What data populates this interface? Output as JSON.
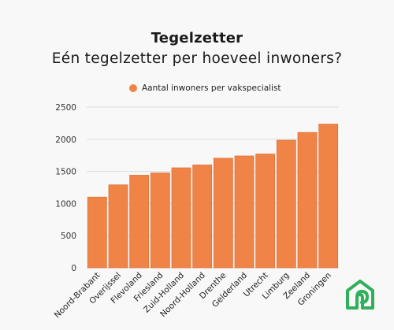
{
  "header": {
    "title": "Tegelzetter",
    "subtitle": "Eén tegelzetter per hoeveel inwoners?"
  },
  "colors": {
    "bar": "#f08447",
    "bar_stroke": "#e0703a",
    "grid": "#dcdcdc",
    "logo": "#2fb05a"
  },
  "logo": {
    "icon": "house-logo-icon"
  },
  "chart_data": {
    "type": "bar",
    "categories": [
      "Noord-Brabant",
      "Overijssel",
      "Flevoland",
      "Friesland",
      "Zuid-Holland",
      "Noord-Holland",
      "Drenthe",
      "Gelderland",
      "Utrecht",
      "Limburg",
      "Zeeland",
      "Groningen"
    ],
    "series": [
      {
        "name": "Aantal inwoners per vakspecialist",
        "values": [
          1100,
          1290,
          1440,
          1475,
          1555,
          1600,
          1705,
          1740,
          1770,
          1985,
          2105,
          2235
        ]
      }
    ],
    "title": "Tegelzetter",
    "subtitle": "Eén tegelzetter per hoeveel inwoners?",
    "xlabel": "",
    "ylabel": "",
    "ylim": [
      0,
      2500
    ],
    "yticks": [
      0,
      500,
      1000,
      1500,
      2000,
      2500
    ],
    "grid": true,
    "legend_position": "top"
  }
}
